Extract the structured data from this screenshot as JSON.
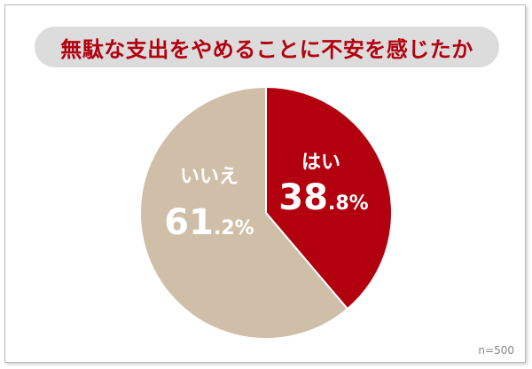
{
  "chart_data": {
    "type": "pie",
    "title": "無駄な支出をやめることに不安を感じたか",
    "slices": [
      {
        "label": "はい",
        "value": 38.8,
        "value_main": "38",
        "value_sub": ".8%",
        "color": "#b3000f"
      },
      {
        "label": "いいえ",
        "value": 61.2,
        "value_main": "61",
        "value_sub": ".2%",
        "color": "#cfbfa8"
      }
    ],
    "start_angle": "12 o'clock",
    "direction": "clockwise",
    "sample_size_label": "n=500"
  },
  "colors": {
    "title_pill_background": "#dcdcdc",
    "title_text": "#b3000f",
    "label_text": "#ffffff",
    "frame_border": "#b9b9b9"
  }
}
